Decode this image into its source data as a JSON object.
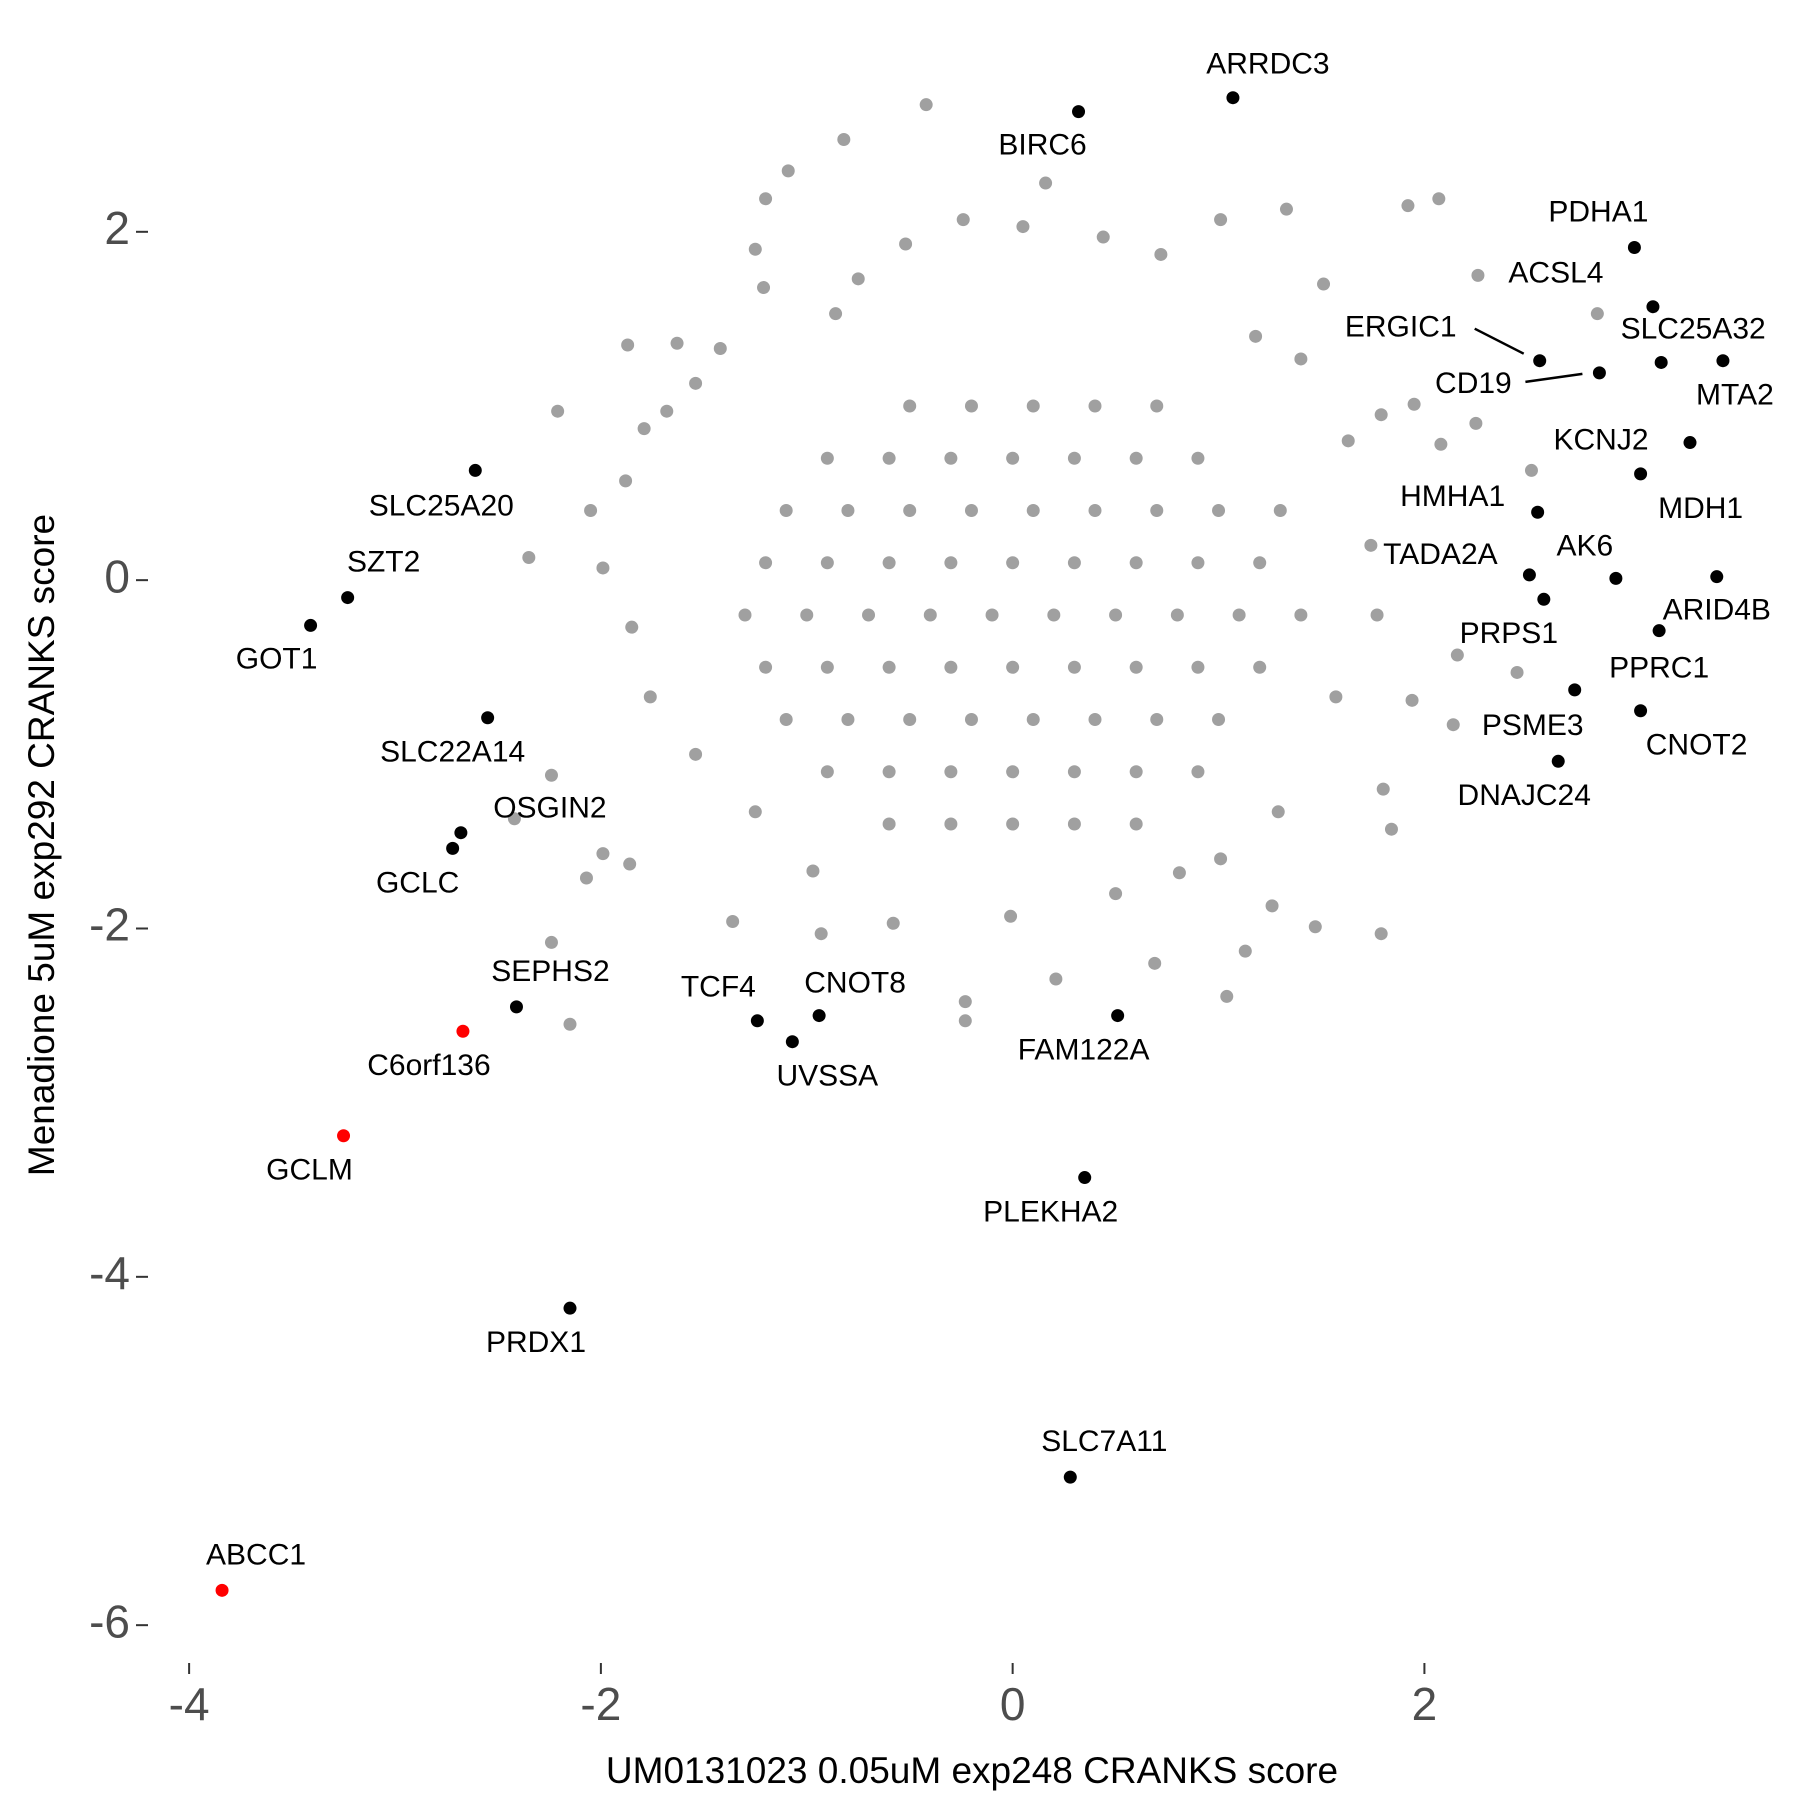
{
  "chart_data": {
    "type": "scatter",
    "xlabel": "UM0131023 0.05uM exp248 CRANKS score",
    "ylabel": "Menadione 5uM exp292 CRANKS score",
    "xlim": [
      -4.19,
      3.8
    ],
    "ylim": [
      -6.2,
      3.13
    ],
    "xticks": [
      -4,
      -2,
      0,
      2
    ],
    "yticks": [
      -6,
      -4,
      -2,
      0,
      2
    ],
    "grid": false,
    "background": {
      "color": "#a0a0a0",
      "x": [
        -0.42,
        -0.82,
        -1.09,
        -1.2,
        -1.25,
        -1.21,
        0.16,
        2.07,
        1.92,
        1.33,
        2.26,
        1.51,
        2.84,
        -1.87,
        -1.63,
        -2.21,
        2.25,
        1.95,
        1.79,
        2.08,
        2.52,
        -2.35,
        2.16,
        2.45,
        2.14,
        1.94,
        1.8,
        1.84,
        -2.24,
        -2.42,
        -2.07,
        -2.24,
        -2.15,
        -1.36,
        -0.93,
        -0.23,
        -0.23,
        0.21,
        1.04,
        1.13,
        1.47,
        1.79,
        0.69,
        1.26,
        0.81,
        -0.58,
        -1.86,
        -1.99,
        -2.05,
        -1.99,
        -1.88,
        -1.68,
        -1.79,
        -1.54,
        -1.42,
        -0.86,
        -0.75,
        -0.52,
        -0.24,
        0.05,
        0.44,
        0.72,
        1.01,
        1.18,
        1.4,
        1.63,
        1.74,
        1.77,
        1.57,
        1.29,
        1.01,
        0.5,
        -0.01,
        -0.97,
        -1.25,
        -1.54,
        -1.76,
        -1.85,
        -0.5,
        -0.2,
        0.1,
        0.4,
        0.7,
        -0.9,
        -0.6,
        -0.3,
        0,
        0.3,
        0.6,
        0.9,
        -1.1,
        -0.8,
        -0.5,
        -0.2,
        0.1,
        0.4,
        0.7,
        1.0,
        1.3,
        -1.2,
        -0.9,
        -0.6,
        -0.3,
        0,
        0.3,
        0.6,
        0.9,
        1.2,
        -1.3,
        -1.0,
        -0.7,
        -0.4,
        -0.1,
        0.2,
        0.5,
        0.8,
        1.1,
        1.4,
        -1.2,
        -0.9,
        -0.6,
        -0.3,
        0,
        0.3,
        0.6,
        0.9,
        1.2,
        -1.1,
        -0.8,
        -0.5,
        -0.2,
        0.1,
        0.4,
        0.7,
        1.0,
        -0.9,
        -0.6,
        -0.3,
        0,
        0.3,
        0.6,
        0.9,
        -0.6,
        -0.3,
        0,
        0.3,
        0.6
      ],
      "y": [
        2.73,
        2.53,
        2.35,
        2.19,
        1.9,
        1.68,
        2.28,
        2.19,
        2.15,
        2.13,
        1.75,
        1.7,
        1.53,
        1.35,
        1.36,
        0.97,
        0.9,
        1.01,
        0.95,
        0.78,
        0.63,
        0.13,
        -0.43,
        -0.53,
        -0.83,
        -0.69,
        -1.2,
        -1.43,
        -1.12,
        -1.37,
        -1.71,
        -2.08,
        -2.55,
        -1.96,
        -2.03,
        -2.53,
        -2.42,
        -2.29,
        -2.39,
        -2.13,
        -1.99,
        -2.03,
        -2.2,
        -1.87,
        -1.68,
        -1.97,
        -1.63,
        -1.57,
        0.4,
        0.07,
        0.57,
        0.97,
        0.87,
        1.13,
        1.33,
        1.53,
        1.73,
        1.93,
        2.07,
        2.03,
        1.97,
        1.87,
        2.07,
        1.4,
        1.27,
        0.8,
        0.2,
        -0.2,
        -0.67,
        -1.33,
        -1.6,
        -1.8,
        -1.93,
        -1.67,
        -1.33,
        -1.0,
        -0.67,
        -0.27,
        1.0,
        1.0,
        1.0,
        1.0,
        1.0,
        0.7,
        0.7,
        0.7,
        0.7,
        0.7,
        0.7,
        0.7,
        0.4,
        0.4,
        0.4,
        0.4,
        0.4,
        0.4,
        0.4,
        0.4,
        0.4,
        0.1,
        0.1,
        0.1,
        0.1,
        0.1,
        0.1,
        0.1,
        0.1,
        0.1,
        -0.2,
        -0.2,
        -0.2,
        -0.2,
        -0.2,
        -0.2,
        -0.2,
        -0.2,
        -0.2,
        -0.2,
        -0.5,
        -0.5,
        -0.5,
        -0.5,
        -0.5,
        -0.5,
        -0.5,
        -0.5,
        -0.5,
        -0.8,
        -0.8,
        -0.8,
        -0.8,
        -0.8,
        -0.8,
        -0.8,
        -0.8,
        -1.1,
        -1.1,
        -1.1,
        -1.1,
        -1.1,
        -1.1,
        -1.1,
        -1.4,
        -1.4,
        -1.4,
        -1.4,
        -1.4
      ]
    },
    "highlighted": {
      "labels": [
        "ARRDC3",
        "BIRC6",
        "PDHA1",
        "ACSL4",
        "ERGIC1",
        "CD19",
        "SLC25A32",
        "MTA2",
        "KCNJ2",
        "MDH1",
        "HMHA1",
        "TADA2A",
        "AK6",
        "ARID4B",
        "PRPS1",
        "PPRC1",
        "PSME3",
        "CNOT2",
        "DNAJC24",
        "SLC25A20",
        "SZT2",
        "GOT1",
        "SLC22A14",
        "OSGIN2",
        "GCLC",
        "SEPHS2",
        "C6orf136",
        "GCLM",
        "PRDX1",
        "ABCC1",
        "TCF4",
        "UVSSA",
        "CNOT8",
        "FAM122A",
        "PLEKHA2",
        "SLC7A11"
      ],
      "x": [
        1.07,
        0.32,
        3.02,
        3.11,
        2.56,
        2.85,
        3.15,
        3.45,
        3.29,
        3.05,
        2.55,
        2.51,
        2.93,
        3.42,
        2.58,
        3.14,
        2.73,
        3.05,
        2.65,
        -2.61,
        -3.23,
        -3.41,
        -2.55,
        -2.68,
        -2.72,
        -2.41,
        -2.67,
        -3.25,
        -2.15,
        -3.84,
        -1.24,
        -1.07,
        -0.94,
        0.51,
        0.35,
        0.28
      ],
      "y": [
        2.77,
        2.69,
        1.91,
        1.57,
        1.26,
        1.19,
        1.25,
        1.26,
        0.79,
        0.61,
        0.39,
        0.03,
        0.01,
        0.02,
        -0.11,
        -0.29,
        -0.63,
        -0.75,
        -1.04,
        0.63,
        -0.1,
        -0.26,
        -0.79,
        -1.45,
        -1.54,
        -2.45,
        -2.59,
        -3.19,
        -4.18,
        -5.8,
        -2.53,
        -2.65,
        -2.5,
        -2.5,
        -3.43,
        -5.15
      ],
      "colors": [
        "#000000",
        "#000000",
        "#000000",
        "#000000",
        "#000000",
        "#000000",
        "#000000",
        "#000000",
        "#000000",
        "#000000",
        "#000000",
        "#000000",
        "#000000",
        "#000000",
        "#000000",
        "#000000",
        "#000000",
        "#000000",
        "#000000",
        "#000000",
        "#000000",
        "#000000",
        "#000000",
        "#000000",
        "#000000",
        "#000000",
        "#ff0000",
        "#ff0000",
        "#000000",
        "#ff0000",
        "#000000",
        "#000000",
        "#000000",
        "#000000",
        "#000000",
        "#000000"
      ]
    }
  }
}
